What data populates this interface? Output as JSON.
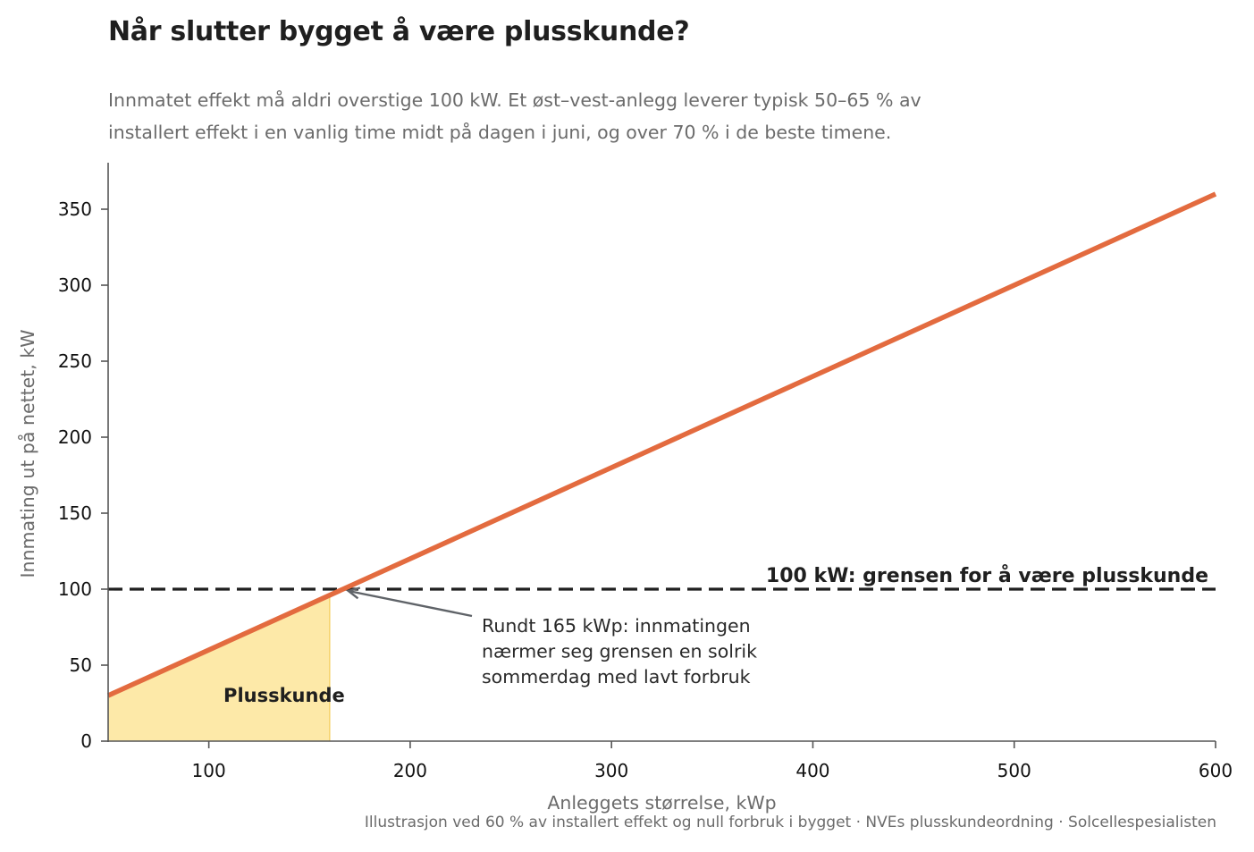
{
  "title": "Når slutter bygget å være plusskunde?",
  "subtitle": {
    "line1": "Innmatet effekt må aldri overstige 100 kW. Et øst–vest-anlegg leverer typisk 50–65 % av",
    "line2": "installert effekt i en vanlig time midt på dagen i juni, og over 70 % i de beste timene."
  },
  "footer": "Illustrasjon ved 60 % av installert effekt og null forbruk i bygget · NVEs plusskundeordning · Solcellespesialisten",
  "colors": {
    "line": "#e36b3f",
    "fill": "#fde9a8",
    "fill_edge": "#f5d36b",
    "limit": "#1f1f1f",
    "axis": "#555555",
    "arrow": "#5f6368"
  },
  "chart_data": {
    "type": "line",
    "xlabel": "Anleggets størrelse, kWp",
    "ylabel": "Innmating ut på nettet, kW",
    "xlim": [
      50,
      600
    ],
    "ylim": [
      0,
      380
    ],
    "xticks": [
      100,
      200,
      300,
      400,
      500,
      600
    ],
    "yticks": [
      0,
      50,
      100,
      150,
      200,
      250,
      300,
      350
    ],
    "grid": false,
    "series": [
      {
        "x": [
          50,
          600
        ],
        "y": [
          30,
          360
        ]
      }
    ],
    "threshold": {
      "y": 100,
      "style": "dashed",
      "label": "100 kW: grensen for å være plusskunde"
    },
    "shaded_region": {
      "x": [
        50,
        160
      ],
      "label": "Plusskunde"
    },
    "annotation": {
      "lines": [
        "Rundt 165 kWp: innmatingen",
        "nærmer seg grensen en solrik",
        "sommerdag med lavt forbruk"
      ],
      "point": [
        166.7,
        100
      ]
    }
  }
}
